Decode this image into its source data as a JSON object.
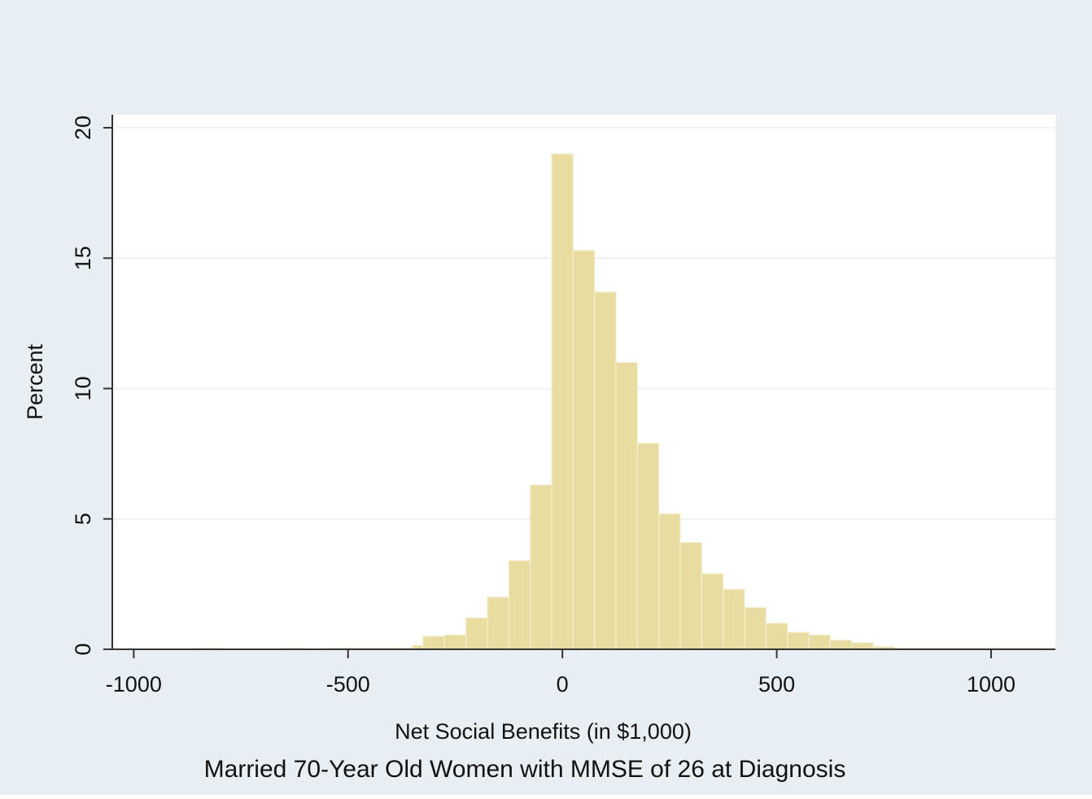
{
  "chart_data": {
    "type": "bar",
    "xlabel": "Net Social Benefits (in $1,000)",
    "ylabel": "Percent",
    "caption": "Married 70-Year Old Women with MMSE of 26 at Diagnosis",
    "xlim": [
      -1050,
      1150
    ],
    "ylim": [
      0,
      20.5
    ],
    "x_ticks": [
      -1000,
      -500,
      0,
      500,
      1000
    ],
    "x_tick_labels": [
      "-1000",
      "-500",
      "0",
      "500",
      "1000"
    ],
    "y_ticks": [
      0,
      5,
      10,
      15,
      20
    ],
    "y_tick_labels": [
      "0",
      "5",
      "10",
      "15",
      "20"
    ],
    "grid": true,
    "bin_width": 50,
    "bins": [
      {
        "start": -850,
        "value": 0.05
      },
      {
        "start": -650,
        "value": 0.05
      },
      {
        "start": -550,
        "value": 0.05
      },
      {
        "start": -500,
        "value": 0.05
      },
      {
        "start": -450,
        "value": 0.05
      },
      {
        "start": -400,
        "value": 0.05
      },
      {
        "start": -350,
        "value": 0.15
      },
      {
        "start": -325,
        "value": 0.5
      },
      {
        "start": -275,
        "value": 0.55
      },
      {
        "start": -225,
        "value": 1.2
      },
      {
        "start": -175,
        "value": 2.0
      },
      {
        "start": -125,
        "value": 3.4
      },
      {
        "start": -75,
        "value": 6.3
      },
      {
        "start": -25,
        "value": 19.0
      },
      {
        "start": 25,
        "value": 15.3
      },
      {
        "start": 75,
        "value": 13.7
      },
      {
        "start": 125,
        "value": 11.0
      },
      {
        "start": 175,
        "value": 7.9
      },
      {
        "start": 225,
        "value": 5.2
      },
      {
        "start": 275,
        "value": 4.1
      },
      {
        "start": 325,
        "value": 2.9
      },
      {
        "start": 375,
        "value": 2.3
      },
      {
        "start": 425,
        "value": 1.6
      },
      {
        "start": 475,
        "value": 1.0
      },
      {
        "start": 525,
        "value": 0.65
      },
      {
        "start": 575,
        "value": 0.55
      },
      {
        "start": 625,
        "value": 0.35
      },
      {
        "start": 675,
        "value": 0.25
      },
      {
        "start": 725,
        "value": 0.1
      },
      {
        "start": 775,
        "value": 0.05
      },
      {
        "start": 825,
        "value": 0.05
      },
      {
        "start": 875,
        "value": 0.05
      },
      {
        "start": 925,
        "value": 0.05
      },
      {
        "start": 975,
        "value": 0.05
      },
      {
        "start": 1025,
        "value": 0.05
      },
      {
        "start": 1075,
        "value": 0.05
      }
    ],
    "colors": {
      "outer_background": "#e8eef2",
      "plot_background": "#ffffff",
      "bar_fill": "#e8dca0",
      "bar_stroke": "#f4eed2",
      "axis": "#333333",
      "grid": "#e9edf0"
    }
  }
}
